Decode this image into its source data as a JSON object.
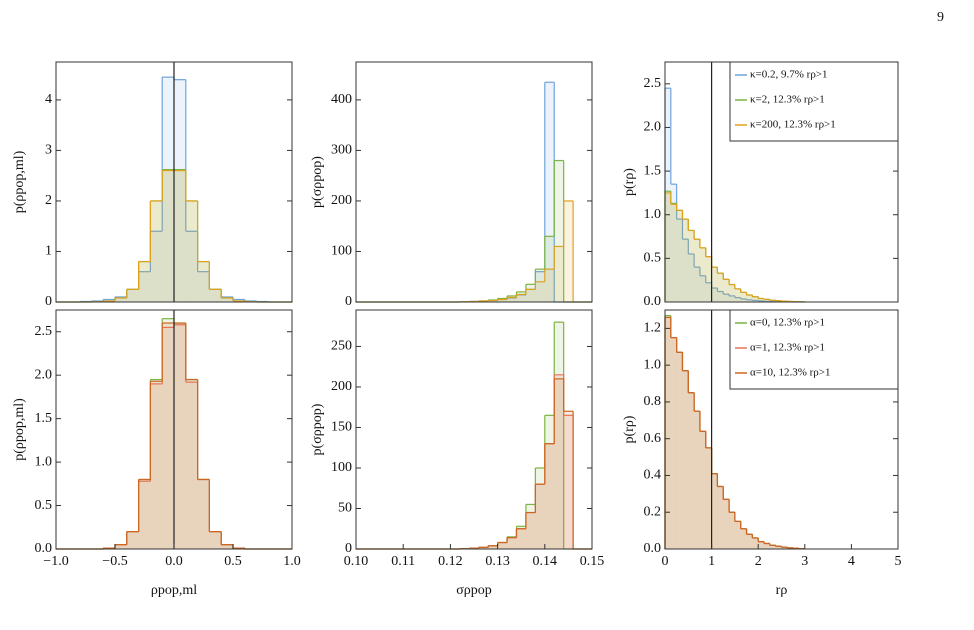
{
  "page_number": "9",
  "chart_data": [
    {
      "type": "histogram",
      "ylabel": "p(ρpop,ml)",
      "xlim": [
        -1,
        1
      ],
      "ylim": [
        0,
        4.75
      ],
      "yticks": [
        0,
        1,
        2,
        3,
        4
      ],
      "vline": 0,
      "bins": [
        -1,
        -0.9,
        -0.8,
        -0.7,
        -0.6,
        -0.5,
        -0.4,
        -0.3,
        -0.2,
        -0.1,
        0,
        0.1,
        0.2,
        0.3,
        0.4,
        0.5,
        0.6,
        0.7,
        0.8,
        0.9,
        1
      ],
      "series": [
        {
          "color": "#6fa3dc",
          "values": [
            0,
            0,
            0.01,
            0.02,
            0.05,
            0.1,
            0.25,
            0.6,
            1.4,
            4.45,
            4.4,
            1.4,
            0.6,
            0.25,
            0.1,
            0.05,
            0.02,
            0.01,
            0,
            0
          ]
        },
        {
          "color": "#7cb342",
          "values": [
            0,
            0,
            0,
            0.005,
            0.02,
            0.08,
            0.25,
            0.8,
            2.0,
            2.62,
            2.62,
            2.0,
            0.8,
            0.25,
            0.08,
            0.02,
            0.005,
            0,
            0,
            0
          ]
        },
        {
          "color": "#e0a21c",
          "values": [
            0,
            0,
            0,
            0.005,
            0.02,
            0.08,
            0.25,
            0.8,
            2.0,
            2.6,
            2.6,
            2.0,
            0.8,
            0.25,
            0.08,
            0.02,
            0.005,
            0,
            0,
            0
          ]
        }
      ]
    },
    {
      "type": "histogram",
      "ylabel": "p(σρpop)",
      "xlim": [
        0.1,
        0.15
      ],
      "ylim": [
        0,
        475
      ],
      "yticks": [
        0,
        100,
        200,
        300,
        400
      ],
      "bins": [
        0.1,
        0.102,
        0.104,
        0.106,
        0.108,
        0.11,
        0.112,
        0.114,
        0.116,
        0.118,
        0.12,
        0.122,
        0.124,
        0.126,
        0.128,
        0.13,
        0.132,
        0.134,
        0.136,
        0.138,
        0.14,
        0.142,
        0.144,
        0.146,
        0.148,
        0.15
      ],
      "series": [
        {
          "color": "#6fa3dc",
          "values": [
            0,
            0,
            0,
            0,
            0,
            0,
            0,
            0,
            0,
            0,
            0,
            0.5,
            1,
            2,
            3,
            5,
            8,
            14,
            25,
            60,
            435,
            0,
            0,
            0,
            0
          ]
        },
        {
          "color": "#7cb342",
          "values": [
            0,
            0,
            0,
            0,
            0,
            0,
            0,
            0,
            0,
            0,
            0,
            0.5,
            1,
            2,
            4,
            7,
            12,
            20,
            35,
            65,
            130,
            280,
            0,
            0,
            0
          ]
        },
        {
          "color": "#e0a21c",
          "values": [
            0,
            0,
            0,
            0,
            0,
            0,
            0,
            0,
            0,
            0,
            0,
            0.5,
            1,
            2,
            3,
            5,
            9,
            15,
            25,
            40,
            65,
            110,
            200,
            0,
            0
          ]
        }
      ]
    },
    {
      "type": "histogram",
      "ylabel": "p(rρ)",
      "xlim": [
        0,
        5
      ],
      "ylim": [
        0,
        2.75
      ],
      "vline": 1,
      "legend": "upper right",
      "yticks": [
        {
          "value": 0,
          "label": "0.0"
        },
        {
          "value": 0.5,
          "label": "0.5"
        },
        {
          "value": 1,
          "label": "1.0"
        },
        {
          "value": 1.5,
          "label": "1.5"
        },
        {
          "value": 2,
          "label": "2.0"
        },
        {
          "value": 2.5,
          "label": "2.5"
        }
      ],
      "bins": [
        0,
        0.125,
        0.25,
        0.375,
        0.5,
        0.625,
        0.75,
        0.875,
        1,
        1.125,
        1.25,
        1.375,
        1.5,
        1.625,
        1.75,
        1.875,
        2,
        2.125,
        2.25,
        2.375,
        2.5,
        2.625,
        2.75,
        2.875,
        3
      ],
      "series": [
        {
          "name": "κ=0.2, 9.7% rρ>1",
          "color": "#6fa3dc",
          "values": [
            2.45,
            1.35,
            0.95,
            0.72,
            0.55,
            0.4,
            0.3,
            0.22,
            0.16,
            0.12,
            0.09,
            0.07,
            0.05,
            0.035,
            0.025,
            0.018,
            0.012,
            0.008,
            0.005,
            0.003,
            0.002,
            0.001,
            0,
            0
          ]
        },
        {
          "name": "κ=2, 12.3% rρ>1",
          "color": "#7cb342",
          "values": [
            1.27,
            1.13,
            1.05,
            0.95,
            0.82,
            0.72,
            0.62,
            0.52,
            0.4,
            0.33,
            0.26,
            0.2,
            0.15,
            0.11,
            0.08,
            0.06,
            0.04,
            0.03,
            0.02,
            0.015,
            0.01,
            0.006,
            0.004,
            0.002
          ]
        },
        {
          "name": "κ=200, 12.3% rρ>1",
          "color": "#e0a21c",
          "values": [
            1.25,
            1.12,
            1.05,
            0.95,
            0.82,
            0.72,
            0.62,
            0.52,
            0.4,
            0.33,
            0.26,
            0.2,
            0.15,
            0.11,
            0.08,
            0.06,
            0.04,
            0.03,
            0.02,
            0.015,
            0.01,
            0.006,
            0.004,
            0.002
          ]
        }
      ]
    },
    {
      "type": "histogram",
      "ylabel": "p(ρpop,ml)",
      "xlabel": "ρpop,ml",
      "xlim": [
        -1,
        1
      ],
      "ylim": [
        0,
        2.75
      ],
      "vline": 0,
      "xticks": [
        {
          "value": -1,
          "label": "−1.0"
        },
        {
          "value": -0.5,
          "label": "−0.5"
        },
        {
          "value": 0,
          "label": "0.0"
        },
        {
          "value": 0.5,
          "label": "0.5"
        },
        {
          "value": 1,
          "label": "1.0"
        }
      ],
      "yticks": [
        {
          "value": 0,
          "label": "0.0"
        },
        {
          "value": 0.5,
          "label": "0.5"
        },
        {
          "value": 1,
          "label": "1.0"
        },
        {
          "value": 1.5,
          "label": "1.5"
        },
        {
          "value": 2,
          "label": "2.0"
        },
        {
          "value": 2.5,
          "label": "2.5"
        }
      ],
      "bins": [
        -1,
        -0.9,
        -0.8,
        -0.7,
        -0.6,
        -0.5,
        -0.4,
        -0.3,
        -0.2,
        -0.1,
        0,
        0.1,
        0.2,
        0.3,
        0.4,
        0.5,
        0.6,
        0.7,
        0.8,
        0.9,
        1
      ],
      "series": [
        {
          "color": "#7cb342",
          "values": [
            0,
            0,
            0,
            0,
            0.01,
            0.05,
            0.2,
            0.8,
            1.95,
            2.65,
            2.6,
            1.95,
            0.8,
            0.2,
            0.05,
            0.01,
            0,
            0,
            0,
            0
          ]
        },
        {
          "color": "#e8745e",
          "values": [
            0,
            0,
            0,
            0,
            0.01,
            0.05,
            0.2,
            0.78,
            1.9,
            2.55,
            2.58,
            1.92,
            0.8,
            0.2,
            0.05,
            0.01,
            0,
            0,
            0,
            0
          ]
        },
        {
          "color": "#cc6620",
          "values": [
            0,
            0,
            0,
            0,
            0.01,
            0.05,
            0.2,
            0.8,
            1.93,
            2.6,
            2.6,
            1.95,
            0.8,
            0.2,
            0.05,
            0.01,
            0,
            0,
            0,
            0
          ]
        }
      ]
    },
    {
      "type": "histogram",
      "ylabel": "p(σρpop)",
      "xlabel": "σρpop",
      "xlim": [
        0.1,
        0.15
      ],
      "ylim": [
        0,
        295
      ],
      "yticks": [
        0,
        50,
        100,
        150,
        200,
        250
      ],
      "xticks": [
        {
          "value": 0.1,
          "label": "0.10"
        },
        {
          "value": 0.11,
          "label": "0.11"
        },
        {
          "value": 0.12,
          "label": "0.12"
        },
        {
          "value": 0.13,
          "label": "0.13"
        },
        {
          "value": 0.14,
          "label": "0.14"
        },
        {
          "value": 0.15,
          "label": "0.15"
        }
      ],
      "bins": [
        0.1,
        0.102,
        0.104,
        0.106,
        0.108,
        0.11,
        0.112,
        0.114,
        0.116,
        0.118,
        0.12,
        0.122,
        0.124,
        0.126,
        0.128,
        0.13,
        0.132,
        0.134,
        0.136,
        0.138,
        0.14,
        0.142,
        0.144,
        0.146,
        0.148,
        0.15
      ],
      "series": [
        {
          "color": "#7cb342",
          "values": [
            0,
            0,
            0,
            0,
            0,
            0,
            0,
            0,
            0,
            0,
            0,
            0.5,
            1,
            2,
            4,
            8,
            15,
            28,
            55,
            100,
            165,
            280,
            0,
            0,
            0
          ]
        },
        {
          "color": "#e8745e",
          "values": [
            0,
            0,
            0,
            0,
            0,
            0,
            0,
            0,
            0,
            0,
            0,
            0.5,
            1,
            2,
            4,
            8,
            14,
            25,
            45,
            80,
            130,
            215,
            165,
            0,
            0
          ]
        },
        {
          "color": "#cc6620",
          "values": [
            0,
            0,
            0,
            0,
            0,
            0,
            0,
            0,
            0,
            0,
            0,
            0.5,
            1,
            2,
            4,
            8,
            14,
            25,
            45,
            80,
            130,
            210,
            170,
            0,
            0
          ]
        }
      ]
    },
    {
      "type": "histogram",
      "ylabel": "p(rρ)",
      "xlabel": "rρ",
      "xlim": [
        0,
        5
      ],
      "ylim": [
        0,
        1.3
      ],
      "vline": 1,
      "legend": "upper right",
      "xticks": [
        0,
        1,
        2,
        3,
        4,
        5
      ],
      "yticks": [
        {
          "value": 0,
          "label": "0.0"
        },
        {
          "value": 0.2,
          "label": "0.2"
        },
        {
          "value": 0.4,
          "label": "0.4"
        },
        {
          "value": 0.6,
          "label": "0.6"
        },
        {
          "value": 0.8,
          "label": "0.8"
        },
        {
          "value": 1,
          "label": "1.0"
        },
        {
          "value": 1.2,
          "label": "1.2"
        }
      ],
      "bins": [
        0,
        0.125,
        0.25,
        0.375,
        0.5,
        0.625,
        0.75,
        0.875,
        1,
        1.125,
        1.25,
        1.375,
        1.5,
        1.625,
        1.75,
        1.875,
        2,
        2.125,
        2.25,
        2.375,
        2.5,
        2.625,
        2.75,
        2.875,
        3
      ],
      "series": [
        {
          "name": "α=0, 12.3% rρ>1",
          "color": "#7cb342",
          "values": [
            1.27,
            1.15,
            1.07,
            0.97,
            0.85,
            0.75,
            0.64,
            0.55,
            0.41,
            0.34,
            0.27,
            0.2,
            0.15,
            0.11,
            0.08,
            0.06,
            0.04,
            0.03,
            0.02,
            0.015,
            0.01,
            0.006,
            0.004,
            0.002
          ]
        },
        {
          "name": "α=1, 12.3% rρ>1",
          "color": "#e8745e",
          "values": [
            1.26,
            1.15,
            1.07,
            0.97,
            0.85,
            0.75,
            0.64,
            0.55,
            0.41,
            0.34,
            0.27,
            0.2,
            0.15,
            0.11,
            0.08,
            0.06,
            0.04,
            0.03,
            0.02,
            0.015,
            0.01,
            0.006,
            0.004,
            0.002
          ]
        },
        {
          "name": "α=10, 12.3% rρ>1",
          "color": "#cc6620",
          "values": [
            1.26,
            1.15,
            1.07,
            0.97,
            0.85,
            0.75,
            0.64,
            0.55,
            0.41,
            0.34,
            0.27,
            0.2,
            0.15,
            0.11,
            0.08,
            0.06,
            0.04,
            0.03,
            0.02,
            0.015,
            0.01,
            0.006,
            0.004,
            0.002
          ]
        }
      ]
    }
  ]
}
